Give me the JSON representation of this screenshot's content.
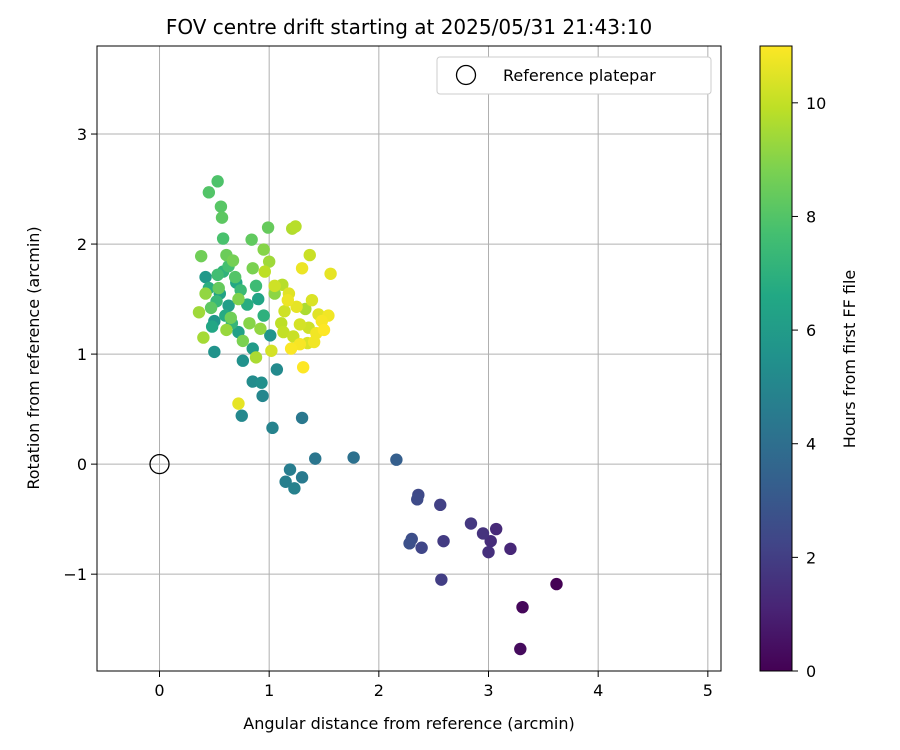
{
  "chart_data": {
    "type": "scatter",
    "title": "FOV centre drift starting at 2025/05/31 21:43:10",
    "xlabel": "Angular distance from reference (arcmin)",
    "ylabel": "Rotation from reference (arcmin)",
    "xlim": [
      -0.57,
      5.12
    ],
    "ylim": [
      -1.88,
      3.8
    ],
    "xticks": [
      "0",
      "1",
      "2",
      "3",
      "4",
      "5"
    ],
    "yticks": [
      "−1",
      "0",
      "1",
      "2",
      "3"
    ],
    "grid": true,
    "legend": {
      "position": "top-right",
      "label": "Reference platepar"
    },
    "reference_point": {
      "x": 0,
      "y": 0
    },
    "colorbar": {
      "label": "Hours from first FF file",
      "colormap": "viridis",
      "range": [
        0,
        11
      ],
      "ticks": [
        "0",
        "2",
        "4",
        "6",
        "8",
        "10"
      ]
    },
    "series": [
      {
        "points": [
          [
            3.62,
            -1.09,
            0.0
          ],
          [
            3.31,
            -1.3,
            0.2
          ],
          [
            3.29,
            -1.68,
            0.3
          ],
          [
            3.2,
            -0.77,
            1.2
          ],
          [
            3.07,
            -0.59,
            1.3
          ],
          [
            3.02,
            -0.7,
            1.4
          ],
          [
            3.0,
            -0.8,
            1.5
          ],
          [
            2.95,
            -0.63,
            1.6
          ],
          [
            2.84,
            -0.54,
            1.8
          ],
          [
            2.59,
            -0.7,
            1.9
          ],
          [
            2.57,
            -1.05,
            2.0
          ],
          [
            2.56,
            -0.37,
            2.1
          ],
          [
            2.39,
            -0.76,
            2.3
          ],
          [
            2.36,
            -0.28,
            2.4
          ],
          [
            2.35,
            -0.32,
            2.5
          ],
          [
            2.3,
            -0.68,
            2.6
          ],
          [
            2.28,
            -0.72,
            2.7
          ],
          [
            2.16,
            0.04,
            3.3
          ],
          [
            1.77,
            0.06,
            4.1
          ],
          [
            1.42,
            0.05,
            4.3
          ],
          [
            1.3,
            0.42,
            4.4
          ],
          [
            1.3,
            -0.12,
            4.5
          ],
          [
            1.19,
            -0.05,
            4.6
          ],
          [
            1.15,
            -0.16,
            4.7
          ],
          [
            1.23,
            -0.22,
            4.8
          ],
          [
            1.03,
            0.33,
            4.9
          ],
          [
            0.94,
            0.62,
            5.0
          ],
          [
            0.75,
            0.44,
            5.1
          ],
          [
            1.07,
            0.86,
            5.2
          ],
          [
            0.85,
            0.75,
            5.3
          ],
          [
            0.93,
            0.74,
            5.4
          ],
          [
            0.76,
            0.94,
            5.5
          ],
          [
            0.5,
            1.02,
            5.6
          ],
          [
            1.01,
            1.17,
            5.7
          ],
          [
            0.5,
            1.3,
            5.8
          ],
          [
            0.42,
            1.7,
            5.9
          ],
          [
            0.85,
            1.05,
            6.0
          ],
          [
            0.63,
            1.44,
            6.1
          ],
          [
            0.72,
            1.2,
            6.2
          ],
          [
            0.55,
            1.55,
            6.3
          ],
          [
            0.9,
            1.5,
            6.4
          ],
          [
            0.48,
            1.25,
            6.5
          ],
          [
            0.7,
            1.65,
            6.6
          ],
          [
            0.6,
            1.35,
            6.7
          ],
          [
            0.8,
            1.45,
            6.8
          ],
          [
            0.45,
            1.6,
            6.9
          ],
          [
            0.95,
            1.35,
            7.0
          ],
          [
            0.58,
            1.75,
            7.1
          ],
          [
            0.66,
            1.28,
            7.2
          ],
          [
            0.52,
            1.48,
            7.3
          ],
          [
            0.74,
            1.58,
            7.4
          ],
          [
            0.88,
            1.62,
            7.5
          ],
          [
            0.53,
            1.72,
            7.6
          ],
          [
            0.63,
            1.8,
            7.7
          ],
          [
            0.58,
            2.05,
            7.8
          ],
          [
            0.53,
            2.57,
            7.9
          ],
          [
            0.45,
            2.47,
            8.0
          ],
          [
            0.56,
            2.34,
            8.1
          ],
          [
            0.57,
            2.24,
            8.2
          ],
          [
            0.84,
            2.04,
            8.3
          ],
          [
            0.99,
            2.15,
            8.4
          ],
          [
            0.61,
            1.9,
            8.5
          ],
          [
            0.38,
            1.89,
            8.6
          ],
          [
            0.67,
            1.85,
            8.7
          ],
          [
            0.85,
            1.78,
            8.8
          ],
          [
            0.72,
            1.5,
            8.9
          ],
          [
            0.95,
            1.95,
            9.0
          ],
          [
            1.05,
            1.55,
            9.1
          ],
          [
            0.42,
            1.55,
            9.2
          ],
          [
            0.61,
            1.22,
            9.3
          ],
          [
            0.36,
            1.38,
            9.4
          ],
          [
            0.4,
            1.15,
            9.5
          ],
          [
            0.88,
            0.97,
            9.6
          ],
          [
            1.21,
            2.14,
            9.7
          ],
          [
            1.24,
            2.16,
            9.8
          ],
          [
            0.96,
            1.75,
            9.9
          ],
          [
            1.13,
            1.2,
            10.0
          ],
          [
            1.37,
            1.9,
            10.1
          ],
          [
            1.14,
            1.39,
            10.2
          ],
          [
            1.28,
            1.27,
            10.3
          ],
          [
            1.35,
            1.1,
            10.4
          ],
          [
            1.45,
            1.36,
            10.5
          ],
          [
            1.56,
            1.73,
            10.6
          ],
          [
            1.3,
            1.78,
            10.7
          ],
          [
            1.43,
            1.19,
            10.8
          ],
          [
            1.48,
            1.3,
            10.9
          ],
          [
            1.2,
            1.05,
            10.95
          ],
          [
            1.31,
            0.88,
            11.0
          ],
          [
            1.54,
            1.35,
            10.8
          ],
          [
            1.18,
            1.55,
            10.5
          ],
          [
            1.05,
            1.62,
            10.2
          ],
          [
            0.72,
            0.55,
            10.6
          ],
          [
            1.39,
            1.49,
            10.4
          ],
          [
            1.25,
            1.43,
            10.6
          ],
          [
            1.02,
            1.03,
            10.3
          ],
          [
            1.28,
            1.09,
            10.9
          ],
          [
            1.5,
            1.22,
            11.0
          ],
          [
            1.12,
            1.63,
            9.8
          ],
          [
            1.33,
            1.41,
            9.6
          ],
          [
            1.0,
            1.84,
            9.4
          ],
          [
            0.92,
            1.23,
            9.2
          ],
          [
            0.82,
            1.28,
            9.0
          ],
          [
            0.76,
            1.12,
            8.8
          ],
          [
            0.65,
            1.33,
            8.6
          ],
          [
            0.54,
            1.6,
            8.4
          ],
          [
            0.47,
            1.42,
            8.2
          ],
          [
            0.69,
            1.7,
            8.0
          ],
          [
            1.11,
            1.28,
            9.9
          ],
          [
            1.22,
            1.16,
            10.1
          ],
          [
            1.17,
            1.49,
            10.7
          ],
          [
            1.41,
            1.11,
            10.8
          ],
          [
            1.36,
            1.24,
            10.2
          ]
        ]
      }
    ]
  }
}
